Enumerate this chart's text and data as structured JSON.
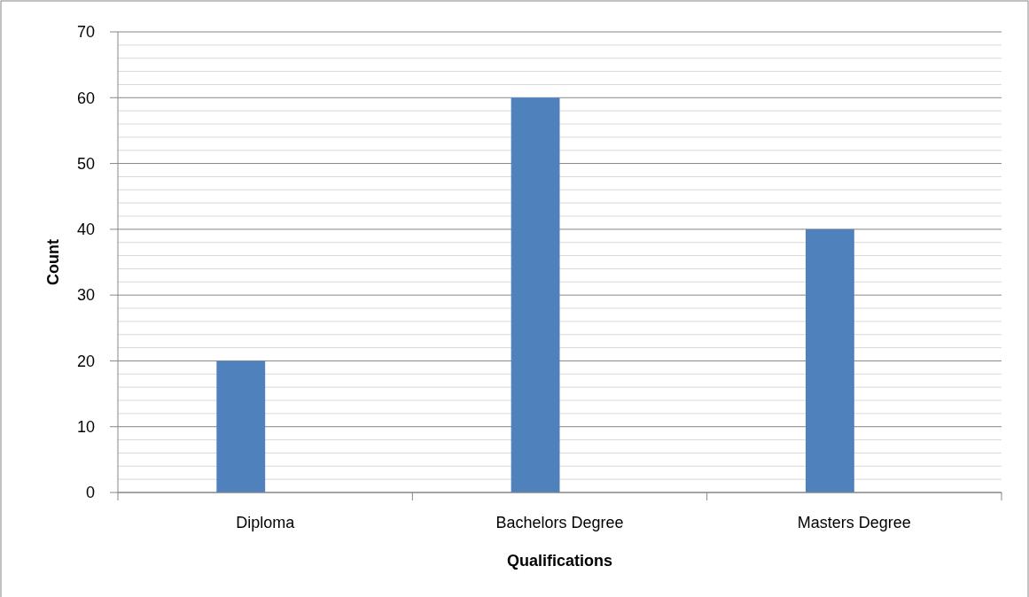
{
  "chart_data": {
    "type": "bar",
    "xlabel": "Qualifications",
    "ylabel": "Count",
    "categories": [
      "Diploma",
      "Bachelors Degree",
      "Masters Degree"
    ],
    "values": [
      20,
      60,
      40
    ],
    "color": "#4f81bd",
    "ylim": [
      0,
      70
    ],
    "yticks": [
      0,
      {
        "value": 2,
        "label": null
      },
      {
        "value": 4,
        "label": null
      },
      {
        "value": 6,
        "label": null
      },
      {
        "value": 8,
        "label": null
      },
      10,
      {
        "value": 12,
        "label": null
      },
      {
        "value": 14,
        "label": null
      },
      {
        "value": 16,
        "label": null
      },
      {
        "value": 18,
        "label": null
      },
      20,
      {
        "value": 22,
        "label": null
      },
      {
        "value": 24,
        "label": null
      },
      {
        "value": 26,
        "label": null
      },
      {
        "value": 28,
        "label": null
      },
      30,
      {
        "value": 32,
        "label": null
      },
      {
        "value": 34,
        "label": null
      },
      {
        "value": 36,
        "label": null
      },
      {
        "value": 38,
        "label": null
      },
      40,
      {
        "value": 42,
        "label": null
      },
      {
        "value": 44,
        "label": null
      },
      {
        "value": 46,
        "label": null
      },
      {
        "value": 48,
        "label": null
      },
      50,
      {
        "value": 52,
        "label": null
      },
      {
        "value": 54,
        "label": null
      },
      {
        "value": 56,
        "label": null
      },
      {
        "value": 58,
        "label": null
      },
      60,
      {
        "value": 62,
        "label": null
      },
      {
        "value": 64,
        "label": null
      },
      {
        "value": 66,
        "label": null
      },
      {
        "value": 68,
        "label": null
      },
      70
    ],
    "grid": true
  }
}
